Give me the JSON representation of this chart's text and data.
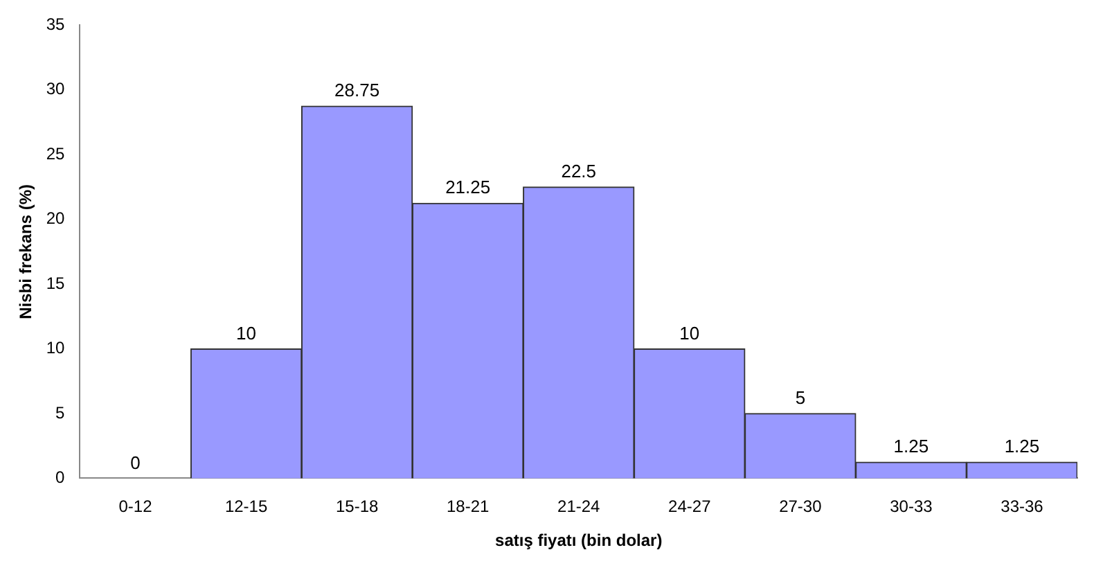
{
  "chart_data": {
    "type": "bar",
    "xlabel": "satış fiyatı (bin dolar)",
    "ylabel": "Nisbi frekans (%)",
    "categories": [
      "0-12",
      "12-15",
      "15-18",
      "18-21",
      "21-24",
      "24-27",
      "27-30",
      "30-33",
      "33-36"
    ],
    "values": [
      0,
      10,
      28.75,
      21.25,
      22.5,
      10,
      5,
      1.25,
      1.25
    ],
    "color": "#9999ff",
    "ylim": [
      0,
      35
    ],
    "yticks": [
      0,
      5,
      10,
      15,
      20,
      25,
      30,
      35
    ],
    "grid": false,
    "data_labels": true
  }
}
